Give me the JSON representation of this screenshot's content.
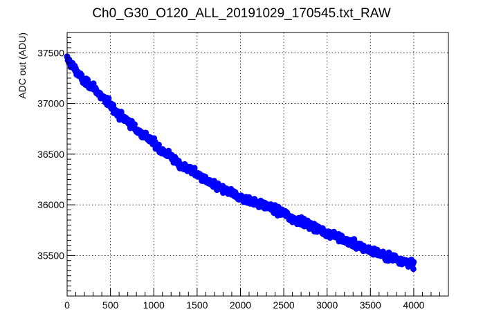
{
  "chart_data": {
    "type": "scatter",
    "title": "Ch0_G30_O120_ALL_20191029_170545.txt_RAW",
    "xlabel": "",
    "ylabel": "ADC out (ADU)",
    "xlim": [
      0,
      4400
    ],
    "ylim": [
      35100,
      37700
    ],
    "grid": true,
    "legend": "none",
    "x_ticks": [
      0,
      500,
      1000,
      1500,
      2000,
      2500,
      3000,
      3500,
      4000
    ],
    "y_ticks": [
      35500,
      36000,
      36500,
      37000,
      37500
    ],
    "x_tick_labels": [
      "0",
      "500",
      "1000",
      "1500",
      "2000",
      "2500",
      "3000",
      "3500",
      "4000"
    ],
    "y_tick_labels": [
      "35500",
      "36000",
      "36500",
      "37000",
      "37500"
    ],
    "marker_color": "#0000ff",
    "series": [
      {
        "x": [
          0,
          100,
          200,
          300,
          400,
          500,
          600,
          700,
          800,
          900,
          1000,
          1100,
          1200,
          1300,
          1400,
          1500,
          1600,
          1700,
          1800,
          1900,
          2000,
          2100,
          2200,
          2300,
          2400,
          2500,
          2600,
          2700,
          2800,
          2900,
          3000,
          3100,
          3200,
          3300,
          3400,
          3500,
          3600,
          3700,
          3800,
          3900,
          4000
        ],
        "y": [
          37440,
          37330,
          37210,
          37170,
          37060,
          36990,
          36880,
          36830,
          36740,
          36680,
          36610,
          36530,
          36480,
          36380,
          36360,
          36300,
          36240,
          36190,
          36150,
          36120,
          36070,
          36050,
          36010,
          35990,
          35950,
          35920,
          35860,
          35840,
          35800,
          35760,
          35720,
          35700,
          35650,
          35620,
          35580,
          35550,
          35520,
          35490,
          35470,
          35440,
          35410
        ]
      }
    ]
  }
}
